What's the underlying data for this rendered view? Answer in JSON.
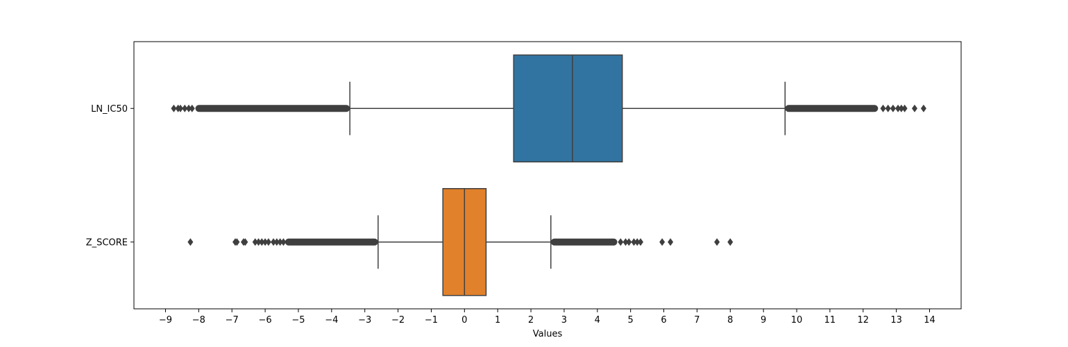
{
  "chart_data": {
    "type": "box",
    "orientation": "horizontal",
    "xlabel": "Values",
    "ylabel": "",
    "title": "",
    "xlim": [
      -9.95,
      14.95
    ],
    "xticks": [
      -9,
      -8,
      -7,
      -6,
      -5,
      -4,
      -3,
      -2,
      -1,
      0,
      1,
      2,
      3,
      4,
      5,
      6,
      7,
      8,
      9,
      10,
      11,
      12,
      13,
      14
    ],
    "categories": [
      "LN_IC50",
      "Z_SCORE"
    ],
    "series": [
      {
        "name": "LN_IC50",
        "color": "#3274a1",
        "whisker_low": -3.45,
        "q1": 1.48,
        "median": 3.25,
        "q3": 4.75,
        "whisker_high": 9.65,
        "outlier_bands": [
          [
            -8.1,
            -3.45
          ],
          [
            9.65,
            12.45
          ]
        ],
        "outliers": [
          -8.75,
          -8.62,
          -8.55,
          -8.42,
          -8.3,
          -8.2,
          12.6,
          12.75,
          12.9,
          13.05,
          13.15,
          13.25,
          13.55,
          13.82
        ]
      },
      {
        "name": "Z_SCORE",
        "color": "#e1812c",
        "whisker_low": -2.6,
        "q1": -0.65,
        "median": 0.0,
        "q3": 0.65,
        "whisker_high": 2.6,
        "outlier_bands": [
          [
            -5.4,
            -2.6
          ],
          [
            2.6,
            4.6
          ]
        ],
        "outliers": [
          -8.25,
          -6.9,
          -6.85,
          -6.65,
          -6.6,
          -6.3,
          -6.2,
          -6.1,
          -6.0,
          -5.9,
          -5.75,
          -5.65,
          -5.55,
          -5.45,
          4.7,
          4.85,
          4.95,
          5.1,
          5.2,
          5.3,
          5.95,
          6.2,
          7.6,
          8.0
        ]
      }
    ],
    "grid": false,
    "legend": "none"
  }
}
